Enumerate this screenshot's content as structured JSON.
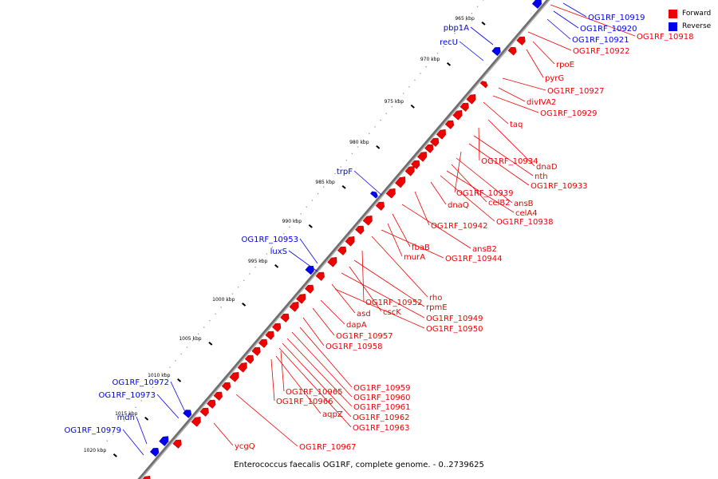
{
  "caption": "Enterococcus faecalis OG1RF, complete genome. - 0..2739625",
  "legend": [
    {
      "label": "Forward",
      "color": "#ee0000"
    },
    {
      "label": "Reverse",
      "color": "#0000ee"
    }
  ],
  "colors": {
    "forward": "#ee0000",
    "reverse": "#0000ee",
    "backbone": "#888888",
    "tick": "#000000"
  },
  "scale_labels": [
    "965 kbp",
    "970 kbp",
    "975 kbp",
    "980 kbp",
    "985 kbp",
    "990 kbp",
    "995 kbp",
    "1000 kbp",
    "1005 kbp",
    "1010 kbp",
    "1015 kbp",
    "1020 kbp"
  ],
  "forward_labels": [
    "OG1RF_10918",
    "OG1RF_10922",
    "rpoE",
    "pyrG",
    "OG1RF_10927",
    "divIVA2",
    "OG1RF_10929",
    "taq",
    "dnaD",
    "OG1RF_10934",
    "nth",
    "OG1RF_10933",
    "OG1RF_10939",
    "ansB",
    "celB2",
    "celA4",
    "dnaQ",
    "OG1RF_10938",
    "OG1RF_10942",
    "ansB2",
    "fbaB",
    "murA",
    "OG1RF_10944",
    "rho",
    "OG1RF_10952",
    "rpmE",
    "cscK",
    "OG1RF_10949",
    "asd",
    "OG1RF_10950",
    "dapA",
    "OG1RF_10957",
    "OG1RF_10958",
    "OG1RF_10959",
    "OG1RF_10965",
    "OG1RF_10960",
    "OG1RF_10966",
    "OG1RF_10961",
    "aqpZ",
    "OG1RF_10962",
    "OG1RF_10963",
    "ycgQ",
    "OG1RF_10967"
  ],
  "reverse_labels": [
    "OG1RF_10919",
    "OG1RF_10920",
    "OG1RF_10921",
    "pbp1A",
    "recU",
    "trpF",
    "OG1RF_10953",
    "luxS",
    "OG1RF_10972",
    "OG1RF_10973",
    "mdh",
    "OG1RF_10979"
  ]
}
